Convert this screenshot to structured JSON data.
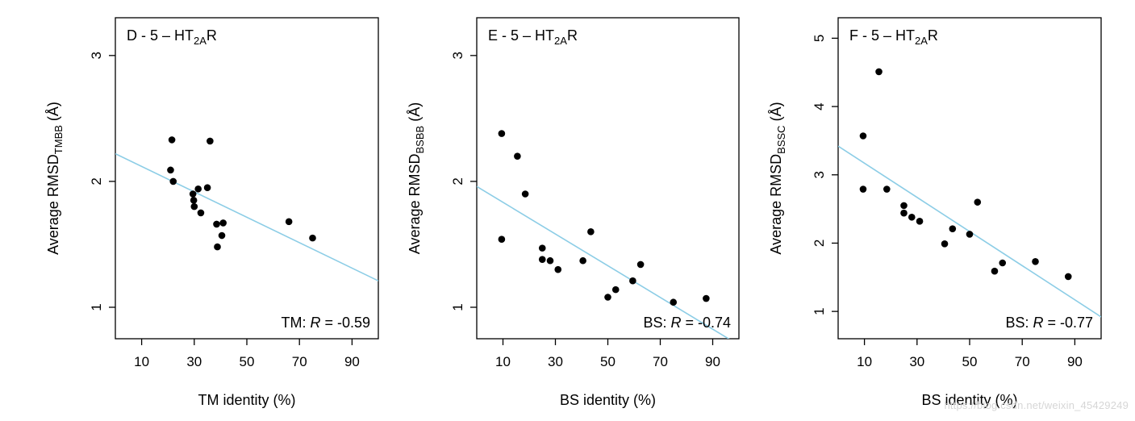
{
  "chart_data": [
    {
      "type": "scatter",
      "panel_label": "D - 5 – HT",
      "panel_sub": "2A",
      "panel_suffix": "R",
      "xlabel": "TM identity (%)",
      "ylabel_prefix": "Average RMSD",
      "ylabel_sub": "TMBB",
      "ylabel_suffix": " (Å)",
      "annotation_prefix": "TM: ",
      "annotation_r": "R",
      "annotation_value": " = -0.59",
      "xlim": [
        0,
        100
      ],
      "ylim": [
        0.75,
        3.3
      ],
      "xticks": [
        10,
        30,
        50,
        70,
        90
      ],
      "yticks": [
        1,
        2,
        3
      ],
      "points": [
        {
          "x": 21.0,
          "y": 2.09
        },
        {
          "x": 21.5,
          "y": 2.33
        },
        {
          "x": 22.0,
          "y": 2.0
        },
        {
          "x": 29.5,
          "y": 1.9
        },
        {
          "x": 29.8,
          "y": 1.85
        },
        {
          "x": 30.0,
          "y": 1.8
        },
        {
          "x": 31.5,
          "y": 1.94
        },
        {
          "x": 32.5,
          "y": 1.75
        },
        {
          "x": 35.0,
          "y": 1.95
        },
        {
          "x": 36.0,
          "y": 2.32
        },
        {
          "x": 38.5,
          "y": 1.66
        },
        {
          "x": 38.8,
          "y": 1.48
        },
        {
          "x": 40.5,
          "y": 1.57
        },
        {
          "x": 41.0,
          "y": 1.67
        },
        {
          "x": 66.0,
          "y": 1.68
        },
        {
          "x": 75.0,
          "y": 1.55
        }
      ],
      "fit": {
        "x": [
          0,
          100
        ],
        "y": [
          2.22,
          1.21
        ]
      }
    },
    {
      "type": "scatter",
      "panel_label": "E - 5 – HT",
      "panel_sub": "2A",
      "panel_suffix": "R",
      "xlabel": "BS identity (%)",
      "ylabel_prefix": "Average RMSD",
      "ylabel_sub": "BSBB",
      "ylabel_suffix": " (Å)",
      "annotation_prefix": "BS: ",
      "annotation_r": "R",
      "annotation_value": " = -0.74",
      "xlim": [
        0,
        100
      ],
      "ylim": [
        0.75,
        3.3
      ],
      "xticks": [
        10,
        30,
        50,
        70,
        90
      ],
      "yticks": [
        1,
        2,
        3
      ],
      "points": [
        {
          "x": 9.5,
          "y": 2.38
        },
        {
          "x": 9.5,
          "y": 1.54
        },
        {
          "x": 15.5,
          "y": 2.2
        },
        {
          "x": 18.5,
          "y": 1.9
        },
        {
          "x": 25.0,
          "y": 1.47
        },
        {
          "x": 25.0,
          "y": 1.38
        },
        {
          "x": 28.0,
          "y": 1.37
        },
        {
          "x": 31.0,
          "y": 1.3
        },
        {
          "x": 40.5,
          "y": 1.37
        },
        {
          "x": 43.5,
          "y": 1.6
        },
        {
          "x": 50.0,
          "y": 1.08
        },
        {
          "x": 53.0,
          "y": 1.14
        },
        {
          "x": 59.5,
          "y": 1.21
        },
        {
          "x": 62.5,
          "y": 1.34
        },
        {
          "x": 75.0,
          "y": 1.04
        },
        {
          "x": 87.5,
          "y": 1.07
        }
      ],
      "fit": {
        "x": [
          0,
          100
        ],
        "y": [
          1.96,
          0.7
        ]
      }
    },
    {
      "type": "scatter",
      "panel_label": "F - 5 – HT",
      "panel_sub": "2A",
      "panel_suffix": "R",
      "xlabel": "BS identity (%)",
      "ylabel_prefix": "Average RMSD",
      "ylabel_sub": "BSSC",
      "ylabel_suffix": " (Å)",
      "annotation_prefix": "BS: ",
      "annotation_r": "R",
      "annotation_value": " = -0.77",
      "xlim": [
        0,
        100
      ],
      "ylim": [
        0.6,
        5.3
      ],
      "xticks": [
        10,
        30,
        50,
        70,
        90
      ],
      "yticks": [
        1,
        2,
        3,
        4,
        5
      ],
      "points": [
        {
          "x": 9.5,
          "y": 3.57
        },
        {
          "x": 9.5,
          "y": 2.79
        },
        {
          "x": 15.5,
          "y": 4.51
        },
        {
          "x": 18.5,
          "y": 2.79
        },
        {
          "x": 25.0,
          "y": 2.55
        },
        {
          "x": 25.0,
          "y": 2.44
        },
        {
          "x": 28.0,
          "y": 2.38
        },
        {
          "x": 31.0,
          "y": 2.32
        },
        {
          "x": 40.5,
          "y": 1.99
        },
        {
          "x": 43.5,
          "y": 2.21
        },
        {
          "x": 50.0,
          "y": 2.13
        },
        {
          "x": 53.0,
          "y": 2.6
        },
        {
          "x": 59.5,
          "y": 1.59
        },
        {
          "x": 62.5,
          "y": 1.71
        },
        {
          "x": 75.0,
          "y": 1.73
        },
        {
          "x": 87.5,
          "y": 1.51
        }
      ],
      "fit": {
        "x": [
          0,
          100
        ],
        "y": [
          3.42,
          0.92
        ]
      }
    }
  ],
  "colors": {
    "fit_line": "#8ccde6",
    "points": "#000000",
    "axes": "#000000"
  },
  "watermark": "https://blog.csdn.net/weixin_45429249"
}
